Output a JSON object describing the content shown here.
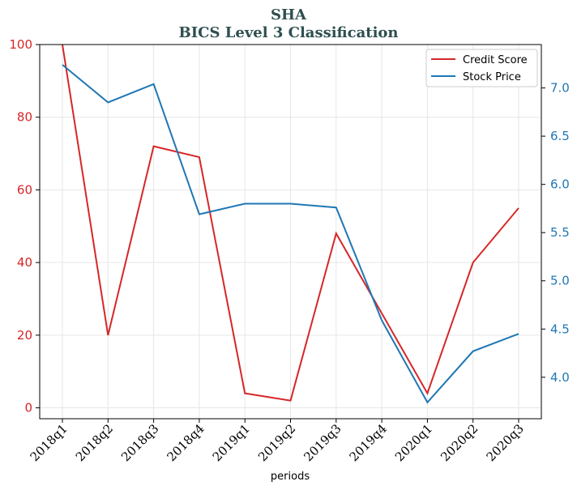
{
  "chart_data": {
    "type": "line",
    "title": "SHA",
    "subtitle": "BICS Level 3 Classification",
    "xlabel": "periods",
    "ylabel": "",
    "ylabel_right": "",
    "categories": [
      "2018q1",
      "2018q2",
      "2018q3",
      "2018q4",
      "2019q1",
      "2019q2",
      "2019q3",
      "2019q4",
      "2020q1",
      "2020q2",
      "2020q3"
    ],
    "ylim": [
      -3,
      100
    ],
    "ylim_right": [
      3.57,
      7.45
    ],
    "yticks_left": [
      0,
      20,
      40,
      60,
      80,
      100
    ],
    "yticks_right": [
      4.0,
      4.5,
      5.0,
      5.5,
      6.0,
      6.5,
      7.0
    ],
    "yticks_right_labels": [
      "4.0",
      "4.5",
      "5.0",
      "5.5",
      "6.0",
      "6.5",
      "7.0"
    ],
    "grid": true,
    "legend_position": "top-right",
    "series": [
      {
        "name": "Credit Score",
        "axis": "left",
        "color": "#d62728",
        "values": [
          100,
          20,
          72,
          69,
          4,
          2,
          48,
          26,
          4,
          40,
          55
        ]
      },
      {
        "name": "Stock Price",
        "axis": "right",
        "color": "#1f77b4",
        "values": [
          7.24,
          6.85,
          7.04,
          5.69,
          5.8,
          5.8,
          5.76,
          4.59,
          3.74,
          4.27,
          4.45
        ]
      }
    ]
  }
}
